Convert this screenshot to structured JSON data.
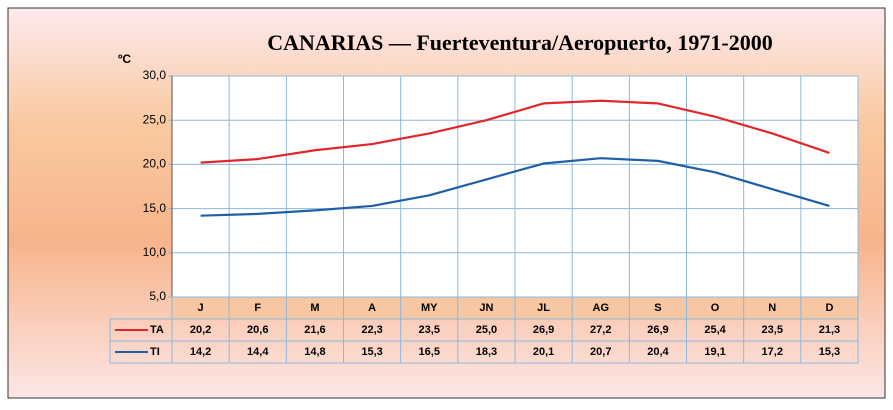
{
  "chart_data": {
    "type": "line",
    "title": "CANARIAS — Fuerteventura/Aeropuerto, 1971-2000",
    "y_label": "ºC",
    "categories": [
      "J",
      "F",
      "M",
      "A",
      "MY",
      "JN",
      "JL",
      "AG",
      "S",
      "O",
      "N",
      "D"
    ],
    "series": [
      {
        "name": "TA",
        "color": "#e0282c",
        "values": [
          20.2,
          20.6,
          21.6,
          22.3,
          23.5,
          25.0,
          26.9,
          27.2,
          26.9,
          25.4,
          23.5,
          21.3
        ],
        "value_labels": [
          "20,2",
          "20,6",
          "21,6",
          "22,3",
          "23,5",
          "25,0",
          "26,9",
          "27,2",
          "26,9",
          "25,4",
          "23,5",
          "21,3"
        ]
      },
      {
        "name": "TI",
        "color": "#1f5fa8",
        "values": [
          14.2,
          14.4,
          14.8,
          15.3,
          16.5,
          18.3,
          20.1,
          20.7,
          20.4,
          19.1,
          17.2,
          15.3
        ],
        "value_labels": [
          "14,2",
          "14,4",
          "14,8",
          "15,3",
          "16,5",
          "18,3",
          "20,1",
          "20,7",
          "20,4",
          "19,1",
          "17,2",
          "15,3"
        ]
      }
    ],
    "ylim": [
      5,
      30
    ],
    "yticks": [
      {
        "value": 5,
        "label": "5,0"
      },
      {
        "value": 10,
        "label": "10,0"
      },
      {
        "value": 15,
        "label": "15,0"
      },
      {
        "value": 20,
        "label": "20,0"
      },
      {
        "value": 25,
        "label": "25,0"
      },
      {
        "value": 30,
        "label": "30,0"
      }
    ],
    "grid": true
  }
}
